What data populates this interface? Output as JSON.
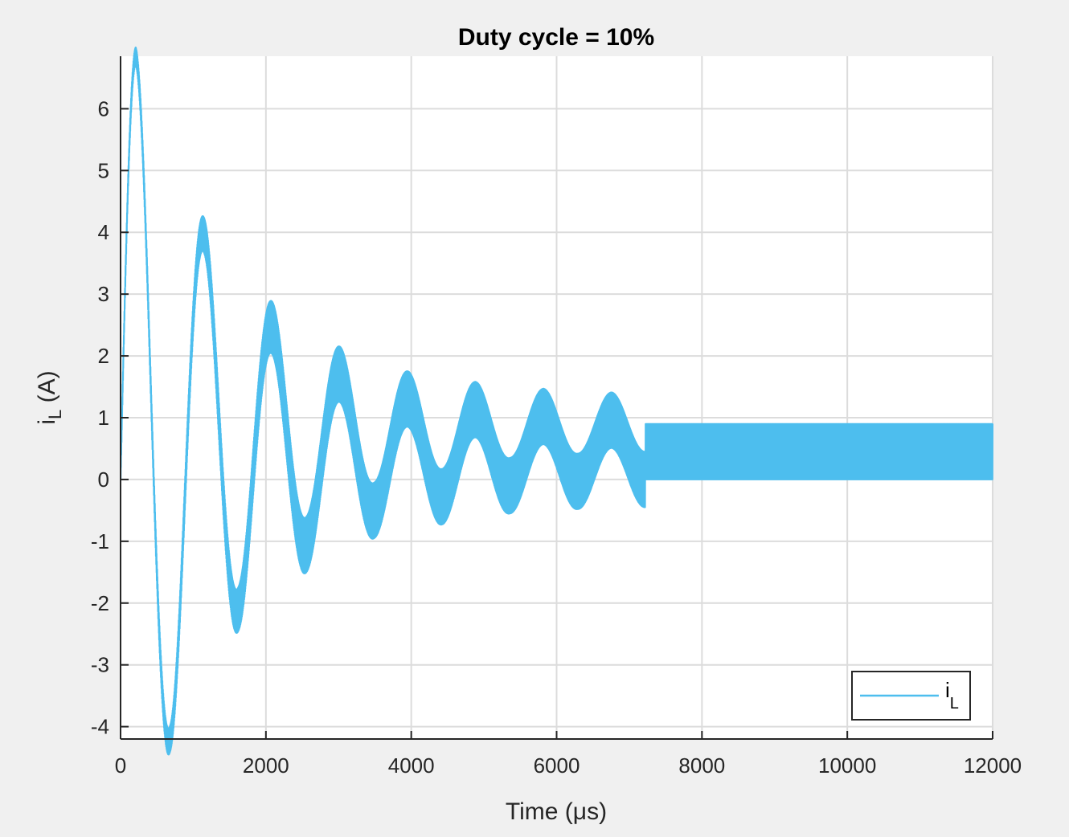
{
  "chart_data": {
    "type": "line",
    "title": "Duty cycle = 10%",
    "xlabel": "Time (μs)",
    "ylabel": "i_L (A)",
    "ylabel_parts": {
      "base": "i",
      "sub": "L",
      "rest": " (A)"
    },
    "xlim": [
      0,
      12000
    ],
    "ylim": [
      -4.2,
      6.85
    ],
    "xticks": [
      0,
      2000,
      4000,
      6000,
      8000,
      10000,
      12000
    ],
    "xtick_labels": [
      "0",
      "2000",
      "4000",
      "6000",
      "8000",
      "10000",
      "12000"
    ],
    "yticks": [
      -4,
      -3,
      -2,
      -1,
      0,
      1,
      2,
      3,
      4,
      5,
      6
    ],
    "ytick_labels": [
      "-4",
      "-3",
      "-2",
      "-1",
      "0",
      "1",
      "2",
      "3",
      "4",
      "5",
      "6"
    ],
    "grid": true,
    "legend_location": "bottom-right",
    "series": [
      {
        "name": "i_L",
        "legend_parts": {
          "base": "i",
          "sub": "L"
        },
        "color": "#4DBEEE",
        "steady_state_mean": 0.45,
        "ripple_peak_to_peak": 0.9,
        "oscillation_period": 935,
        "envelope_peaks": [
          {
            "x": 210,
            "y": 6.85
          },
          {
            "x": 680,
            "y": -4.2
          },
          {
            "x": 1150,
            "y": 3.95
          },
          {
            "x": 1620,
            "y": -2.1
          },
          {
            "x": 2090,
            "y": 2.45
          },
          {
            "x": 2560,
            "y": -1.05
          },
          {
            "x": 3020,
            "y": 1.7
          },
          {
            "x": 3490,
            "y": -0.5
          },
          {
            "x": 3960,
            "y": 1.3
          },
          {
            "x": 4420,
            "y": -0.28
          },
          {
            "x": 4890,
            "y": 1.13
          },
          {
            "x": 5360,
            "y": -0.1
          },
          {
            "x": 5820,
            "y": 1.02
          },
          {
            "x": 6290,
            "y": -0.03
          },
          {
            "x": 6760,
            "y": 0.96
          },
          {
            "x": 7220,
            "y": 0.0
          },
          {
            "x": 12000,
            "y": 0.9
          }
        ]
      }
    ]
  }
}
